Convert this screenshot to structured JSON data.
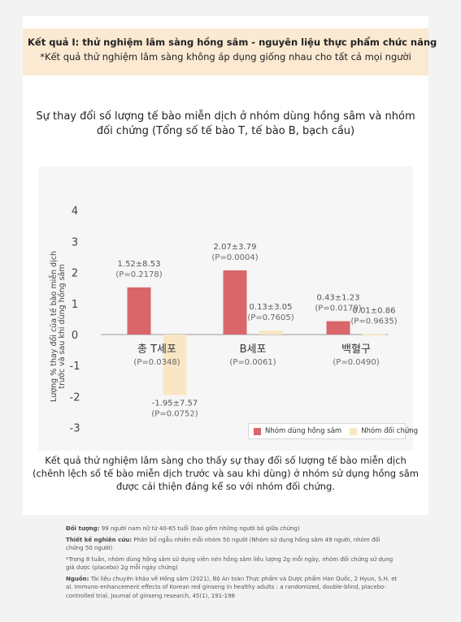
{
  "header": {
    "title": "Kết quả I: thử nghiệm lâm sàng hồng sâm - nguyên liệu thực phẩm chức năng",
    "subtitle": "*Kết quả thử nghiệm lâm sàng không áp dụng giống nhau cho tất cả mọi người"
  },
  "chart_heading": "Sự thay đổi số lượng tế bào miễn dịch ở nhóm dùng hồng sâm và nhóm đối chứng (Tổng số tế bào T, tế bào B, bạch cầu)",
  "chart_data": {
    "type": "bar",
    "categories": [
      "총 T세포",
      "B세포",
      "백혈구"
    ],
    "category_pvalues": [
      "(P=0.0348)",
      "(P=0.0061)",
      "(P=0.0490)"
    ],
    "ylabel": "Lượng % thay đổi của tế bào miễn dịch trước và sau khi dùng hồng sâm",
    "ylim": [
      -3,
      4
    ],
    "yticks": [
      4,
      3,
      2,
      1,
      0,
      -1,
      -2,
      -3
    ],
    "series": [
      {
        "name": "Nhóm dùng hồng sâm",
        "color": "#d9666a",
        "values": [
          1.52,
          2.07,
          0.43
        ],
        "labels": [
          "1.52±8.53",
          "2.07±3.79",
          "0.43±1.23"
        ],
        "pvalues": [
          "(P=0.2178)",
          "(P=0.0004)",
          "(P=0.0179)"
        ]
      },
      {
        "name": "Nhóm đối chứng",
        "color": "#f9e6c4",
        "values": [
          -1.95,
          0.13,
          0.01
        ],
        "labels": [
          "-1.95±7.57",
          "0.13±3.05",
          "0.01±0.86"
        ],
        "pvalues": [
          "(P=0.0752)",
          "(P=0.7605)",
          "(P=0.9635)"
        ]
      }
    ],
    "legend_position": "bottom-right",
    "grid": false
  },
  "caption": "Kết quả thử nghiệm lâm sàng cho thấy sự thay đổi số lượng tế bào miễn dịch (chênh lệch số tế bào miễn dịch trước và sau khi dùng) ở nhóm sử dụng hồng sâm được cải thiện đáng kể so với nhóm đối chứng.",
  "notes": {
    "subject_label": "Đối tượng:",
    "subject_text": "99 người nam nữ từ 40-65 tuổi (bao gồm những người bỏ giữa chừng)",
    "design_label": "Thiết kế nghiên cứu:",
    "design_text": "Phân bổ ngẫu nhiên mỗi nhóm 50 người (Nhóm sử dụng hồng sâm 49 người, nhóm đối chứng 50 người)",
    "design_note": "*Trong 8 tuần, nhóm dùng hồng sâm sử dụng viên nén hồng sâm liều lượng 2g mỗi ngày, nhóm đối chứng sử dụng giả dược (placebo) 2g mỗi ngày chứng)",
    "source_label": "Nguồn:",
    "source_text": "Tài liệu chuyên khảo về Hồng sâm (2021), Bộ An toàn Thực phẩm và Dược phẩm Hàn Quốc, 2 Hyun, S.H. et al. Immuno-enhancement effects of Korean red ginseng in healthy adults : a randomized, double-blind, placebo-controlled trial. Journal of ginseng research, 45(1), 191-198"
  }
}
